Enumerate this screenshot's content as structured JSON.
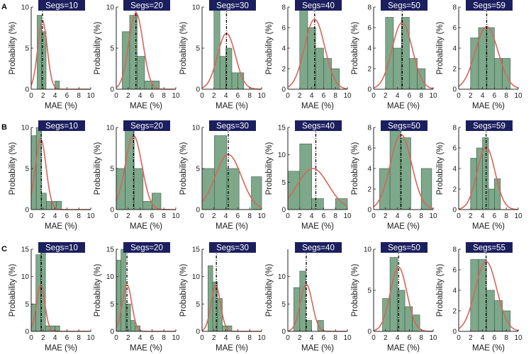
{
  "colors": {
    "bar_fill": "#7ea88a",
    "bar_stroke": "#3a5a45",
    "curve": "#d9645a",
    "title_bg": "#1b1f5e",
    "title_text": "#ffffff",
    "axis": "#222222",
    "mean_line": "#000000"
  },
  "chart_data": [
    {
      "row": "A",
      "type": "bar",
      "title": "Segs=10",
      "xlabel": "MAE (%)",
      "ylabel": "Probability (%)",
      "xlim": [
        0,
        10
      ],
      "ylim": [
        0,
        10
      ],
      "yticks": [
        0,
        5,
        10
      ],
      "xticks": [
        0,
        2,
        4,
        6,
        8,
        10
      ],
      "bin_edges": [
        1,
        1.75,
        2.5,
        3.25,
        4,
        4.75
      ],
      "values": [
        9,
        7,
        0,
        0,
        1
      ],
      "mean": 1.9,
      "curve": {
        "mu": 1.9,
        "sigma": 0.8,
        "peak": 8.3
      }
    },
    {
      "row": "A",
      "type": "bar",
      "title": "Segs=20",
      "xlabel": "MAE (%)",
      "ylabel": "Probability (%)",
      "xlim": [
        0,
        10
      ],
      "ylim": [
        0,
        10
      ],
      "yticks": [
        0,
        5,
        10
      ],
      "xticks": [
        0,
        2,
        4,
        6,
        8,
        10
      ],
      "bin_edges": [
        1,
        2.25,
        3.5,
        4.75,
        6,
        7.25
      ],
      "values": [
        7,
        9,
        4,
        1,
        1
      ],
      "mean": 3.3,
      "curve": {
        "mu": 3.3,
        "sigma": 1.2,
        "peak": 9.3
      }
    },
    {
      "row": "A",
      "type": "bar",
      "title": "Segs=30",
      "xlabel": "MAE (%)",
      "ylabel": "Probability (%)",
      "xlim": [
        0,
        10
      ],
      "ylim": [
        0,
        10
      ],
      "yticks": [
        0,
        5,
        10
      ],
      "xticks": [
        0,
        2,
        4,
        6,
        8,
        10
      ],
      "bin_edges": [
        2,
        3,
        4,
        5,
        6,
        7,
        8
      ],
      "values": [
        10,
        4,
        5,
        2,
        2,
        0
      ],
      "mean": 4.1,
      "curve": {
        "mu": 4.1,
        "sigma": 1.5,
        "peak": 6.8
      }
    },
    {
      "row": "A",
      "type": "bar",
      "title": "Segs=40",
      "xlabel": "MAE (%)",
      "ylabel": "Probability (%)",
      "xlim": [
        0,
        10
      ],
      "ylim": [
        0,
        8
      ],
      "yticks": [
        0,
        2,
        4,
        6,
        8
      ],
      "xticks": [
        0,
        2,
        4,
        6,
        8,
        10
      ],
      "bin_edges": [
        2,
        3.33,
        4.67,
        6,
        7.33,
        8.67
      ],
      "values": [
        8,
        6,
        4,
        3,
        2
      ],
      "mean": 4.5,
      "curve": {
        "mu": 4.5,
        "sigma": 1.7,
        "peak": 6.8
      }
    },
    {
      "row": "A",
      "type": "bar",
      "title": "Segs=50",
      "xlabel": "MAE (%)",
      "ylabel": "Probability (%)",
      "xlim": [
        0,
        10
      ],
      "ylim": [
        0,
        8
      ],
      "yticks": [
        0,
        2,
        4,
        6,
        8
      ],
      "xticks": [
        0,
        2,
        4,
        6,
        8,
        10
      ],
      "bin_edges": [
        2,
        3.33,
        4.67,
        6,
        7.33,
        8.67
      ],
      "values": [
        7,
        4,
        7,
        3,
        2
      ],
      "mean": 4.8,
      "curve": {
        "mu": 4.8,
        "sigma": 1.7,
        "peak": 6.5
      }
    },
    {
      "row": "A",
      "type": "bar",
      "title": "Segs=59",
      "xlabel": "MAE (%)",
      "ylabel": "Probability (%)",
      "xlim": [
        0,
        10
      ],
      "ylim": [
        0,
        8
      ],
      "yticks": [
        0,
        2,
        4,
        6,
        8
      ],
      "xticks": [
        0,
        2,
        4,
        6,
        8,
        10
      ],
      "bin_edges": [
        2,
        3.33,
        4.67,
        6,
        7.33,
        8.67
      ],
      "values": [
        5,
        6,
        6,
        3,
        3
      ],
      "mean": 4.7,
      "curve": {
        "mu": 4.7,
        "sigma": 1.9,
        "peak": 6.1
      }
    },
    {
      "row": "B",
      "type": "bar",
      "title": "Segs=10",
      "xlabel": "MAE (%)",
      "ylabel": "Probability (%)",
      "xlim": [
        0,
        10
      ],
      "ylim": [
        0,
        10
      ],
      "yticks": [
        0,
        5,
        10
      ],
      "xticks": [
        0,
        2,
        4,
        6,
        8,
        10
      ],
      "bin_edges": [
        0,
        0.85,
        1.7,
        2.55,
        3.4,
        4.25,
        5.1
      ],
      "values": [
        9,
        10,
        2,
        1,
        1,
        1
      ],
      "mean": 1.7,
      "curve": {
        "mu": 1.6,
        "sigma": 0.9,
        "peak": 8.6
      }
    },
    {
      "row": "B",
      "type": "bar",
      "title": "Segs=20",
      "xlabel": "MAE (%)",
      "ylabel": "Probability (%)",
      "xlim": [
        0,
        10
      ],
      "ylim": [
        0,
        10
      ],
      "yticks": [
        0,
        5,
        10
      ],
      "xticks": [
        0,
        2,
        4,
        6,
        8,
        10
      ],
      "bin_edges": [
        0,
        1.5,
        3,
        4.5,
        6,
        7.5
      ],
      "values": [
        5,
        10,
        5,
        1,
        2
      ],
      "mean": 2.9,
      "curve": {
        "mu": 2.9,
        "sigma": 1.4,
        "peak": 9.0
      }
    },
    {
      "row": "B",
      "type": "bar",
      "title": "Segs=30",
      "xlabel": "MAE (%)",
      "ylabel": "Probability (%)",
      "xlim": [
        0,
        10
      ],
      "ylim": [
        0,
        10
      ],
      "yticks": [
        0,
        5,
        10
      ],
      "xticks": [
        0,
        2,
        4,
        6,
        8,
        10
      ],
      "bin_edges": [
        0,
        2.07,
        4.14,
        6.21,
        8.28,
        10
      ],
      "values": [
        5,
        9,
        5,
        0,
        4
      ],
      "mean": 4.4,
      "curve": {
        "mu": 4.4,
        "sigma": 2.2,
        "peak": 6.7
      }
    },
    {
      "row": "B",
      "type": "bar",
      "title": "Segs=40",
      "xlabel": "MAE (%)",
      "ylabel": "Probability (%)",
      "xlim": [
        0,
        10
      ],
      "ylim": [
        0,
        15
      ],
      "yticks": [
        0,
        5,
        10,
        15
      ],
      "xticks": [
        0,
        2,
        4,
        6,
        8,
        10
      ],
      "bin_edges": [
        0,
        2,
        4,
        6,
        8,
        10
      ],
      "values": [
        7,
        12,
        2,
        0,
        2
      ],
      "mean": 4.7,
      "curve": {
        "mu": 4.2,
        "sigma": 2.6,
        "peak": 7.5
      }
    },
    {
      "row": "B",
      "type": "bar",
      "title": "Segs=50",
      "xlabel": "MAE (%)",
      "ylabel": "Probability (%)",
      "xlim": [
        0,
        10
      ],
      "ylim": [
        0,
        8
      ],
      "yticks": [
        0,
        2,
        4,
        6,
        8
      ],
      "xticks": [
        0,
        2,
        4,
        6,
        8,
        10
      ],
      "bin_edges": [
        1,
        2.75,
        4.5,
        6.25,
        8,
        9.75
      ],
      "values": [
        4,
        8,
        7,
        0,
        4
      ],
      "mean": 4.6,
      "curve": {
        "mu": 4.6,
        "sigma": 1.8,
        "peak": 7.3
      }
    },
    {
      "row": "B",
      "type": "bar",
      "title": "Segs=59",
      "xlabel": "MAE (%)",
      "ylabel": "Probability (%)",
      "xlim": [
        0,
        10
      ],
      "ylim": [
        0,
        8
      ],
      "yticks": [
        0,
        2,
        4,
        6,
        8
      ],
      "xticks": [
        0,
        2,
        4,
        6,
        8,
        10
      ],
      "bin_edges": [
        2,
        3,
        4,
        5,
        6,
        7,
        8
      ],
      "values": [
        5,
        6,
        7,
        2,
        3,
        0
      ],
      "mean": 4.6,
      "curve": {
        "mu": 4.6,
        "sigma": 1.5,
        "peak": 6.1
      }
    },
    {
      "row": "C",
      "type": "bar",
      "title": "Segs=10",
      "xlabel": "MAE (%)",
      "ylabel": "Probability (%)",
      "xlim": [
        0,
        10
      ],
      "ylim": [
        0,
        15
      ],
      "yticks": [
        0,
        5,
        10,
        15
      ],
      "xticks": [
        0,
        2,
        4,
        6,
        8,
        10
      ],
      "bin_edges": [
        0,
        0.8,
        1.6,
        2.4,
        3.2,
        4,
        4.8,
        5.6
      ],
      "values": [
        5,
        14,
        15,
        1,
        1,
        1,
        0
      ],
      "mean": 1.7,
      "curve": {
        "mu": 1.6,
        "sigma": 0.7,
        "peak": 8.4
      }
    },
    {
      "row": "C",
      "type": "bar",
      "title": "Segs=20",
      "xlabel": "MAE (%)",
      "ylabel": "Probability (%)",
      "xlim": [
        0,
        10
      ],
      "ylim": [
        0,
        15
      ],
      "yticks": [
        0,
        5,
        10,
        15
      ],
      "xticks": [
        0,
        2,
        4,
        6,
        8,
        10
      ],
      "bin_edges": [
        0,
        0.8,
        1.6,
        2.4,
        3.2,
        4,
        4.8
      ],
      "values": [
        13,
        15,
        5,
        2,
        1,
        0
      ],
      "mean": 1.8,
      "curve": {
        "mu": 1.8,
        "sigma": 0.8,
        "peak": 8.5
      }
    },
    {
      "row": "C",
      "type": "bar",
      "title": "Segs=30",
      "xlabel": "MAE (%)",
      "ylabel": "Probability (%)",
      "xlim": [
        0,
        10
      ],
      "ylim": [
        0,
        15
      ],
      "yticks": [
        0,
        5,
        10,
        15
      ],
      "xticks": [
        0,
        2,
        4,
        6,
        8,
        10
      ],
      "bin_edges": [
        1,
        1.8,
        2.6,
        3.4,
        4.2,
        5
      ],
      "values": [
        12,
        9,
        6,
        1,
        1
      ],
      "mean": 2.4,
      "curve": {
        "mu": 2.3,
        "sigma": 0.8,
        "peak": 8.4
      }
    },
    {
      "row": "C",
      "type": "bar",
      "title": "Segs=40",
      "xlabel": "MAE (%)",
      "ylabel": "Probability (%)",
      "xlim": [
        0,
        10
      ],
      "ylim": [
        0,
        15
      ],
      "yticks": [
        0,
        5,
        10
      ],
      "xticks": [
        0,
        2,
        4,
        6,
        8,
        10
      ],
      "bin_edges": [
        1,
        2,
        3,
        4,
        5,
        6
      ],
      "values": [
        8,
        11,
        2,
        0,
        2
      ],
      "mean": 3.1,
      "curve": {
        "mu": 3.1,
        "sigma": 1.0,
        "peak": 8.6
      }
    },
    {
      "row": "C",
      "type": "bar",
      "title": "Segs=50",
      "xlabel": "MAE (%)",
      "ylabel": "Probability (%)",
      "xlim": [
        0,
        10
      ],
      "ylim": [
        0,
        10
      ],
      "yticks": [
        0,
        5,
        10
      ],
      "xticks": [
        0,
        2,
        4,
        6,
        8,
        10
      ],
      "bin_edges": [
        1.5,
        2.75,
        4,
        5.25,
        6.5,
        7.75
      ],
      "values": [
        4,
        9,
        5,
        3,
        2
      ],
      "mean": 4.2,
      "curve": {
        "mu": 4.2,
        "sigma": 1.4,
        "peak": 7.8
      }
    },
    {
      "row": "C",
      "type": "bar",
      "title": "Segs=55",
      "xlabel": "MAE (%)",
      "ylabel": "Probability (%)",
      "xlim": [
        0,
        10
      ],
      "ylim": [
        0,
        8
      ],
      "yticks": [
        0,
        2,
        4,
        6,
        8
      ],
      "xticks": [
        0,
        2,
        4,
        6,
        8,
        10
      ],
      "bin_edges": [
        2,
        3.33,
        4.67,
        6,
        7.33,
        8.67
      ],
      "values": [
        7,
        7,
        4,
        3,
        2
      ],
      "mean": 4.6,
      "curve": {
        "mu": 4.6,
        "sigma": 1.8,
        "peak": 6.8
      }
    }
  ],
  "row_labels": [
    "A",
    "B",
    "C"
  ]
}
